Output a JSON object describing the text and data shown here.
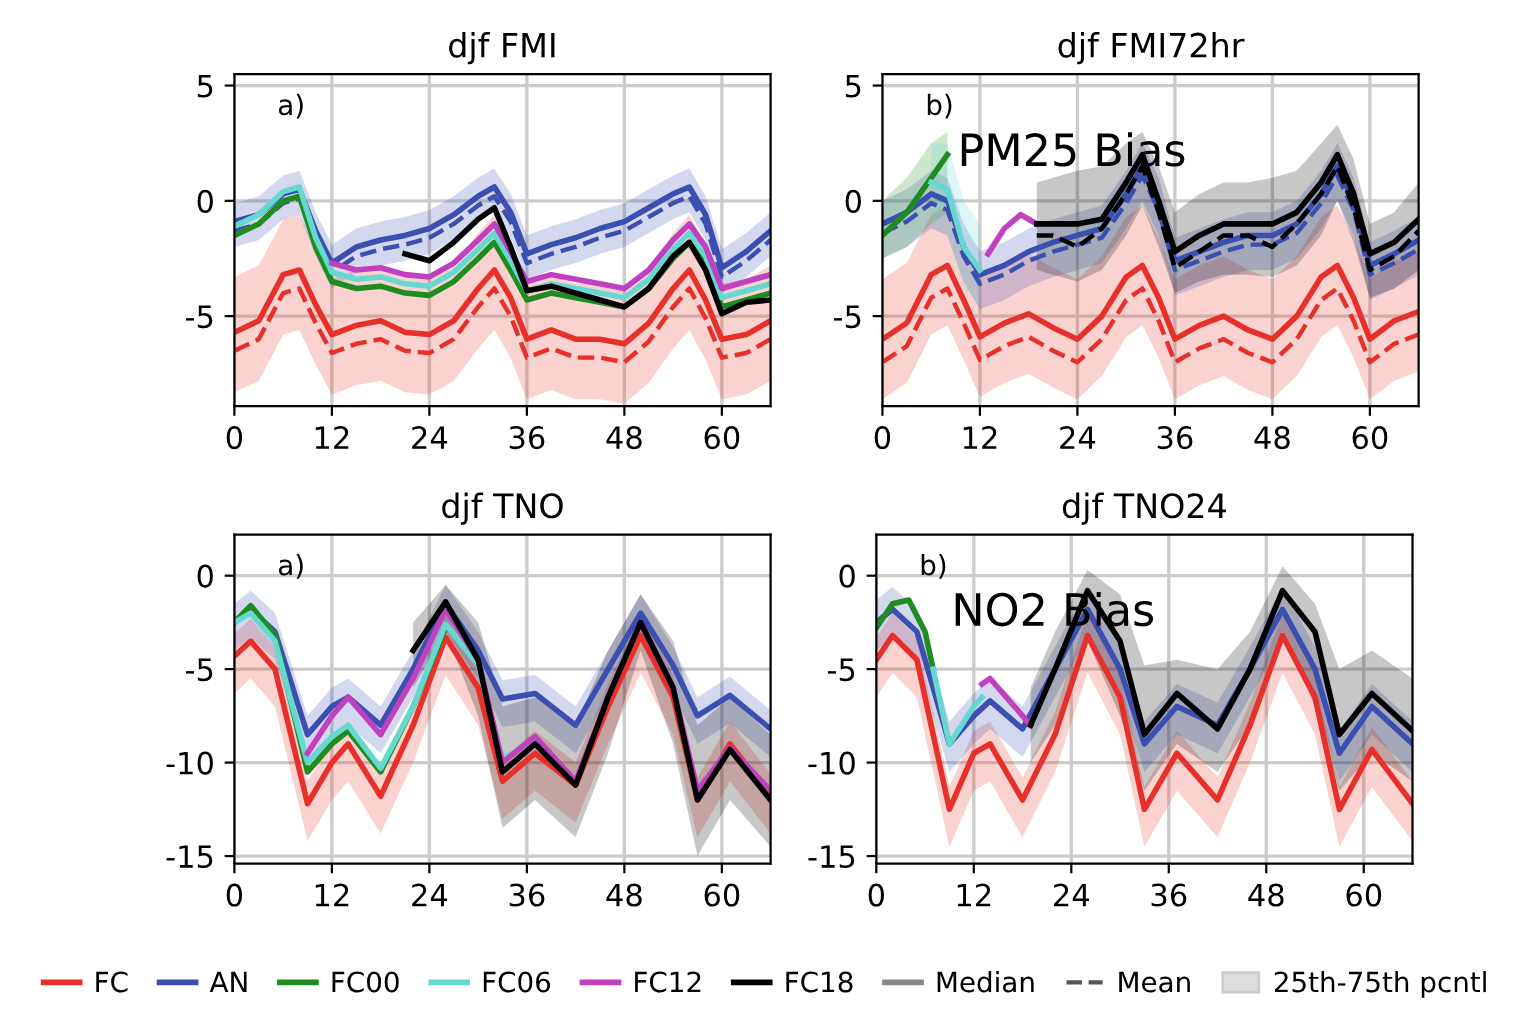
{
  "chart_data": [
    {
      "type": "line",
      "title": "djf FMI",
      "x": [
        0,
        3,
        6,
        8,
        10,
        12,
        15,
        18,
        21,
        24,
        27,
        30,
        32,
        34,
        36,
        39,
        42,
        45,
        48,
        51,
        54,
        56,
        58,
        60,
        63,
        66
      ],
      "xlim": [
        0,
        66
      ],
      "xticks": [
        0,
        12,
        24,
        36,
        48,
        60
      ],
      "ylim": [
        -8.9,
        5.5
      ],
      "yticks": [
        -5,
        0,
        5
      ],
      "grid": true,
      "legend": "bottom",
      "annotations": [
        "a)",
        "Median",
        "Mean",
        "25th-75th pcntl"
      ],
      "series": [
        {
          "name": "FC",
          "color": "#e8302a",
          "line_style": "solid",
          "values": [
            -5.7,
            -5.2,
            -3.2,
            -3.0,
            -4.5,
            -5.8,
            -5.4,
            -5.2,
            -5.7,
            -5.8,
            -5.2,
            -3.8,
            -3.0,
            -4.2,
            -6.0,
            -5.6,
            -6.0,
            -6.0,
            -6.2,
            -5.3,
            -3.8,
            -3.0,
            -4.3,
            -6.0,
            -5.8,
            -5.2
          ],
          "lower": [
            -8.3,
            -7.8,
            -5.8,
            -5.6,
            -7.1,
            -8.4,
            -8.0,
            -7.8,
            -8.3,
            -8.4,
            -7.8,
            -6.4,
            -5.6,
            -6.8,
            -8.6,
            -8.2,
            -8.6,
            -8.6,
            -8.8,
            -7.9,
            -6.4,
            -5.6,
            -6.9,
            -8.6,
            -8.4,
            -7.8
          ],
          "upper": [
            -3.3,
            -2.8,
            -0.8,
            -0.6,
            -2.1,
            -3.4,
            -3.0,
            -2.8,
            -3.3,
            -3.4,
            -2.8,
            -1.4,
            -0.6,
            -1.8,
            -3.6,
            -3.2,
            -3.6,
            -3.6,
            -3.8,
            -2.9,
            -1.4,
            -0.6,
            -1.9,
            -3.6,
            -3.4,
            -2.8
          ]
        },
        {
          "color": "#e8302a",
          "line_style": "dashed",
          "values": [
            -6.5,
            -6.0,
            -4.0,
            -3.8,
            -5.3,
            -6.6,
            -6.2,
            -6.0,
            -6.5,
            -6.6,
            -6.0,
            -4.6,
            -3.8,
            -5.0,
            -6.8,
            -6.4,
            -6.8,
            -6.8,
            -7.0,
            -6.1,
            -4.6,
            -3.8,
            -5.1,
            -6.8,
            -6.6,
            -6.0
          ]
        },
        {
          "name": "AN",
          "color": "#3a4fb0",
          "line_style": "solid",
          "values": [
            -0.9,
            -0.6,
            0.3,
            0.5,
            -1.3,
            -2.7,
            -2.0,
            -1.7,
            -1.5,
            -1.2,
            -0.6,
            0.2,
            0.6,
            -0.5,
            -2.3,
            -1.9,
            -1.6,
            -1.2,
            -0.9,
            -0.3,
            0.3,
            0.6,
            -0.6,
            -2.9,
            -2.2,
            -1.3
          ],
          "lower": [
            -2.0,
            -1.7,
            -0.8,
            -0.6,
            -2.4,
            -3.8,
            -3.1,
            -2.8,
            -2.6,
            -2.3,
            -1.7,
            -0.9,
            -0.5,
            -1.6,
            -3.4,
            -3.0,
            -2.7,
            -2.3,
            -2.0,
            -1.4,
            -0.8,
            -0.5,
            -1.7,
            -4.0,
            -3.3,
            -2.4
          ],
          "upper": [
            -0.1,
            0.2,
            1.1,
            1.3,
            -0.5,
            -1.9,
            -1.2,
            -0.9,
            -0.7,
            -0.4,
            0.2,
            1.0,
            1.4,
            0.3,
            -1.5,
            -1.1,
            -0.8,
            -0.4,
            -0.1,
            0.5,
            1.1,
            1.4,
            0.2,
            -2.1,
            -1.4,
            -0.5
          ]
        },
        {
          "color": "#3a4fb0",
          "line_style": "dashed",
          "values": [
            -1.3,
            -1.0,
            -0.1,
            0.1,
            -1.7,
            -3.1,
            -2.4,
            -2.1,
            -1.9,
            -1.6,
            -1.0,
            -0.2,
            0.2,
            -0.9,
            -2.7,
            -2.3,
            -2.0,
            -1.6,
            -1.3,
            -0.7,
            -0.1,
            0.2,
            -1.0,
            -3.3,
            -2.6,
            -1.7
          ]
        },
        {
          "name": "FC00",
          "color": "#1e8c1e",
          "line_style": "solid",
          "values": [
            -1.5,
            -1.0,
            0.0,
            0.2,
            -2.0,
            -3.5,
            -3.8,
            -3.7,
            -4.0,
            -4.1,
            -3.5,
            -2.5,
            -1.8,
            -3.0,
            -4.3,
            -4.0,
            -4.2,
            -4.4,
            -4.6,
            -3.8,
            -2.5,
            -1.8,
            -2.8,
            -4.6,
            -4.3,
            -4.0
          ]
        },
        {
          "name": "FC06",
          "color": "#66d8d0",
          "line_style": "solid",
          "values": [
            -1.1,
            -0.6,
            0.4,
            0.6,
            -1.6,
            -3.1,
            -3.4,
            -3.3,
            -3.6,
            -3.7,
            -3.1,
            -2.1,
            -1.4,
            -2.6,
            -3.9,
            -3.6,
            -3.8,
            -4.0,
            -4.2,
            -3.4,
            -2.1,
            -1.4,
            -2.4,
            -4.2,
            -3.9,
            -3.6
          ]
        },
        {
          "name": "FC12",
          "color": "#c040c0",
          "line_style": "solid",
          "x": [
            12,
            15,
            18,
            21,
            24,
            27,
            30,
            32,
            34,
            36,
            39,
            42,
            45,
            48,
            51,
            54,
            56,
            58,
            60,
            63,
            66
          ],
          "values": [
            -2.7,
            -3.0,
            -2.9,
            -3.2,
            -3.3,
            -2.7,
            -1.7,
            -1.0,
            -2.2,
            -3.5,
            -3.2,
            -3.4,
            -3.6,
            -3.8,
            -3.0,
            -1.7,
            -1.0,
            -2.0,
            -3.8,
            -3.5,
            -3.2
          ]
        },
        {
          "name": "FC18",
          "color": "#000000",
          "line_style": "solid",
          "x": [
            21,
            24,
            27,
            30,
            32,
            34,
            36,
            39,
            42,
            45,
            48,
            51,
            54,
            56,
            58,
            60,
            63,
            66
          ],
          "values": [
            -2.3,
            -2.6,
            -1.8,
            -0.8,
            -0.3,
            -2.0,
            -3.9,
            -3.7,
            -4.0,
            -4.3,
            -4.6,
            -3.8,
            -2.4,
            -1.8,
            -3.0,
            -4.9,
            -4.4,
            -4.3
          ]
        }
      ]
    },
    {
      "type": "line",
      "title": "djf FMI72hr",
      "x": [
        0,
        3,
        6,
        8,
        10,
        12,
        15,
        18,
        21,
        24,
        27,
        30,
        32,
        34,
        36,
        39,
        42,
        45,
        48,
        51,
        54,
        56,
        58,
        60,
        63,
        66
      ],
      "xlim": [
        0,
        66
      ],
      "xticks": [
        0,
        12,
        24,
        36,
        48,
        60
      ],
      "ylim": [
        -8.9,
        5.5
      ],
      "yticks": [
        -5,
        0,
        5
      ],
      "grid": true,
      "annotations": [
        "b)",
        "PM25 Bias"
      ],
      "series": [
        {
          "name": "FC",
          "color": "#e8302a",
          "line_style": "solid",
          "values": [
            -6.0,
            -5.3,
            -3.2,
            -2.8,
            -4.3,
            -5.9,
            -5.3,
            -4.9,
            -5.5,
            -6.0,
            -5.0,
            -3.3,
            -2.8,
            -4.2,
            -6.0,
            -5.4,
            -5.0,
            -5.6,
            -6.0,
            -5.0,
            -3.3,
            -2.8,
            -4.2,
            -6.0,
            -5.2,
            -4.8
          ],
          "lower": [
            -8.6,
            -7.9,
            -5.8,
            -5.4,
            -6.9,
            -8.5,
            -7.9,
            -7.5,
            -8.1,
            -8.6,
            -7.6,
            -5.9,
            -5.4,
            -6.8,
            -8.6,
            -8.0,
            -7.6,
            -8.2,
            -8.6,
            -7.6,
            -5.9,
            -5.4,
            -6.8,
            -8.6,
            -7.8,
            -7.4
          ],
          "upper": [
            -3.4,
            -2.7,
            -0.6,
            -0.2,
            -1.7,
            -3.3,
            -2.7,
            -2.3,
            -2.9,
            -3.4,
            -2.4,
            -0.7,
            -0.2,
            -1.6,
            -3.4,
            -2.8,
            -2.4,
            -3.0,
            -3.4,
            -2.4,
            -0.7,
            -0.2,
            -1.6,
            -3.4,
            -2.6,
            -2.2
          ]
        },
        {
          "color": "#e8302a",
          "line_style": "dashed",
          "values": [
            -7.0,
            -6.3,
            -4.2,
            -3.8,
            -5.3,
            -6.9,
            -6.3,
            -5.9,
            -6.5,
            -7.0,
            -6.0,
            -4.3,
            -3.8,
            -5.2,
            -7.0,
            -6.4,
            -6.0,
            -6.6,
            -7.0,
            -6.0,
            -4.3,
            -3.8,
            -5.2,
            -7.0,
            -6.2,
            -5.8
          ]
        },
        {
          "name": "AN",
          "color": "#3a4fb0",
          "line_style": "solid",
          "values": [
            -1.0,
            -0.5,
            0.3,
            0.0,
            -2.0,
            -3.2,
            -2.8,
            -2.2,
            -1.8,
            -1.5,
            -1.2,
            0.3,
            1.5,
            0.0,
            -2.6,
            -2.2,
            -1.8,
            -1.5,
            -1.5,
            -1.0,
            0.3,
            1.5,
            0.0,
            -2.8,
            -2.3,
            -1.7
          ],
          "lower": [
            -2.5,
            -2.0,
            -1.2,
            -1.5,
            -3.5,
            -4.7,
            -4.3,
            -3.7,
            -3.3,
            -3.0,
            -2.7,
            -1.2,
            0.0,
            -1.5,
            -4.1,
            -3.7,
            -3.3,
            -3.0,
            -3.0,
            -2.5,
            -1.2,
            0.0,
            -1.5,
            -4.3,
            -3.8,
            -3.2
          ],
          "upper": [
            0.0,
            0.5,
            1.3,
            1.0,
            -1.0,
            -2.2,
            -1.8,
            -1.2,
            -0.8,
            -0.5,
            -0.2,
            1.3,
            2.5,
            1.0,
            -1.6,
            -1.2,
            -0.8,
            -0.5,
            -0.5,
            0.0,
            1.3,
            2.5,
            1.0,
            -1.8,
            -1.3,
            -0.7
          ]
        },
        {
          "color": "#3a4fb0",
          "line_style": "dashed",
          "values": [
            -1.4,
            -0.9,
            -0.1,
            -0.4,
            -2.4,
            -3.6,
            -3.2,
            -2.6,
            -2.2,
            -1.9,
            -1.6,
            -0.1,
            1.1,
            -0.4,
            -3.0,
            -2.6,
            -2.2,
            -1.9,
            -1.9,
            -1.4,
            -0.1,
            1.1,
            -0.4,
            -3.2,
            -2.7,
            -2.1
          ]
        },
        {
          "name": "FC00",
          "color": "#1e8c1e",
          "line_style": "solid",
          "x": [
            0,
            3,
            6,
            8
          ],
          "values": [
            -1.5,
            -0.5,
            1.0,
            2.0
          ],
          "lower": [
            -2.5,
            -2.0,
            -1.0,
            -0.5
          ],
          "upper": [
            0.0,
            1.0,
            2.5,
            3.0
          ]
        },
        {
          "name": "FC06",
          "color": "#66d8d0",
          "line_style": "solid",
          "x": [
            6,
            8,
            10,
            12
          ],
          "values": [
            0.8,
            0.5,
            -2.0,
            -3.0
          ],
          "lower": [
            -1.0,
            -1.5,
            -3.8,
            -4.5
          ],
          "upper": [
            2.5,
            2.5,
            0.0,
            -1.0
          ]
        },
        {
          "name": "FC12",
          "color": "#c040c0",
          "line_style": "solid",
          "x": [
            13,
            15,
            17,
            18,
            19
          ],
          "values": [
            -2.3,
            -1.2,
            -0.6,
            -0.8,
            -1.0
          ]
        },
        {
          "name": "FC18",
          "color": "#000000",
          "line_style": "solid",
          "x": [
            19,
            21,
            24,
            27,
            30,
            32,
            34,
            36,
            39,
            42,
            45,
            48,
            51,
            54,
            56,
            58,
            60,
            63,
            66
          ],
          "values": [
            -1.0,
            -1.0,
            -1.0,
            -0.8,
            0.8,
            2.0,
            0.0,
            -2.2,
            -1.5,
            -1.0,
            -1.0,
            -1.0,
            -0.5,
            0.8,
            2.0,
            0.3,
            -2.3,
            -1.8,
            -0.8
          ],
          "lower": [
            -3.0,
            -3.2,
            -3.5,
            -3.0,
            -1.5,
            -0.2,
            -2.0,
            -4.0,
            -3.5,
            -3.2,
            -3.2,
            -3.3,
            -2.8,
            -1.5,
            0.0,
            -1.8,
            -4.2,
            -3.8,
            -3.0
          ],
          "upper": [
            0.8,
            1.0,
            1.3,
            1.5,
            2.5,
            3.0,
            1.5,
            -0.5,
            0.3,
            0.8,
            0.8,
            1.0,
            1.3,
            2.5,
            3.3,
            1.8,
            -1.0,
            -0.5,
            0.8
          ]
        },
        {
          "color": "#000000",
          "line_style": "dashed",
          "x": [
            19,
            21,
            24,
            27,
            30,
            32,
            34,
            36,
            39,
            42,
            45,
            48,
            51,
            54,
            56,
            58,
            60,
            63,
            66
          ],
          "values": [
            -1.5,
            -1.5,
            -2.0,
            -1.2,
            0.3,
            1.5,
            -0.5,
            -2.9,
            -2.2,
            -1.5,
            -1.5,
            -2.0,
            -1.0,
            0.3,
            1.5,
            -0.3,
            -3.0,
            -2.4,
            -1.3
          ]
        }
      ]
    },
    {
      "type": "line",
      "title": "djf TNO",
      "x": [
        0,
        2,
        5,
        9,
        12,
        14,
        18,
        22,
        26,
        30,
        33,
        37,
        42,
        46,
        50,
        54,
        57,
        61,
        66
      ],
      "xlim": [
        0,
        66
      ],
      "xticks": [
        0,
        12,
        24,
        36,
        48,
        60
      ],
      "ylim": [
        -15.4,
        2.2
      ],
      "yticks": [
        -15,
        -10,
        -5,
        0
      ],
      "grid": true,
      "annotations": [
        "a)"
      ],
      "series": [
        {
          "name": "FC",
          "color": "#e8302a",
          "line_style": "solid",
          "values": [
            -4.3,
            -3.5,
            -5.0,
            -12.2,
            -10.0,
            -9.0,
            -11.8,
            -8.0,
            -3.3,
            -6.0,
            -11.0,
            -9.5,
            -11.2,
            -7.0,
            -3.2,
            -6.5,
            -12.0,
            -9.0,
            -11.8
          ],
          "lower": [
            -6.3,
            -5.5,
            -7.0,
            -14.2,
            -12.0,
            -11.0,
            -13.8,
            -10.0,
            -5.3,
            -8.0,
            -13.0,
            -11.5,
            -13.2,
            -9.0,
            -5.2,
            -8.5,
            -14.0,
            -11.0,
            -13.8
          ],
          "upper": [
            -3.1,
            -2.3,
            -3.8,
            -11.0,
            -8.8,
            -7.8,
            -10.6,
            -6.8,
            -2.1,
            -4.8,
            -9.8,
            -8.3,
            -10.0,
            -5.8,
            -2.0,
            -5.3,
            -10.8,
            -7.8,
            -10.6
          ]
        },
        {
          "name": "AN",
          "color": "#3a4fb0",
          "line_style": "solid",
          "values": [
            -2.5,
            -1.8,
            -3.0,
            -8.5,
            -7.0,
            -6.5,
            -8.0,
            -5.0,
            -1.5,
            -4.0,
            -6.6,
            -6.3,
            -8.0,
            -5.0,
            -2.0,
            -4.8,
            -7.5,
            -6.4,
            -8.2
          ],
          "lower": [
            -4.0,
            -3.3,
            -4.5,
            -10.0,
            -8.5,
            -8.0,
            -9.5,
            -6.5,
            -3.0,
            -5.5,
            -8.1,
            -7.8,
            -9.5,
            -6.5,
            -3.5,
            -6.3,
            -9.0,
            -7.9,
            -9.7
          ],
          "upper": [
            -1.5,
            -0.8,
            -2.0,
            -7.5,
            -6.0,
            -5.5,
            -7.0,
            -4.0,
            -0.5,
            -3.0,
            -5.6,
            -5.3,
            -7.0,
            -4.0,
            -1.0,
            -3.8,
            -6.5,
            -5.4,
            -7.2
          ]
        },
        {
          "name": "FC00",
          "color": "#1e8c1e",
          "line_style": "solid",
          "x": [
            0,
            2,
            5,
            9,
            12,
            14,
            18,
            22,
            26
          ],
          "values": [
            -2.5,
            -1.6,
            -3.2,
            -10.5,
            -9.0,
            -8.3,
            -10.5,
            -7.0,
            -2.8
          ]
        },
        {
          "name": "FC06",
          "color": "#66d8d0",
          "line_style": "solid",
          "x": [
            0,
            2,
            5,
            9,
            12,
            14,
            18,
            22,
            26,
            30,
            33,
            37
          ],
          "values": [
            -2.5,
            -2.0,
            -3.5,
            -10.0,
            -8.6,
            -8.0,
            -10.3,
            -7.0,
            -2.6,
            -4.8,
            -9.8,
            -8.8
          ]
        },
        {
          "name": "FC12",
          "color": "#c040c0",
          "line_style": "solid",
          "x": [
            9,
            12,
            14,
            18,
            22,
            26,
            30,
            33,
            37,
            42,
            46,
            50,
            54,
            57,
            61,
            66
          ],
          "values": [
            -9.5,
            -7.5,
            -6.5,
            -8.5,
            -5.5,
            -1.8,
            -4.5,
            -10.0,
            -8.6,
            -11.0,
            -6.5,
            -2.5,
            -6.0,
            -11.5,
            -9.2,
            -11.5
          ]
        },
        {
          "name": "FC18",
          "color": "#000000",
          "line_style": "solid",
          "x": [
            22,
            26,
            30,
            33,
            37,
            42,
            46,
            50,
            54,
            57,
            61,
            66
          ],
          "values": [
            -4.0,
            -1.4,
            -4.5,
            -10.5,
            -9.0,
            -11.2,
            -6.5,
            -2.5,
            -6.0,
            -12.0,
            -9.3,
            -12.0
          ],
          "lower": [
            -6.0,
            -3.0,
            -7.5,
            -13.5,
            -12.0,
            -14.0,
            -9.5,
            -4.0,
            -9.0,
            -15.0,
            -12.0,
            -14.5
          ],
          "upper": [
            -2.5,
            -0.5,
            -2.5,
            -7.0,
            -6.5,
            -8.0,
            -4.0,
            -1.0,
            -3.5,
            -8.0,
            -6.5,
            -8.5
          ]
        }
      ]
    },
    {
      "type": "line",
      "title": "djf TNO24",
      "x": [
        0,
        2,
        5,
        9,
        12,
        14,
        18,
        22,
        26,
        30,
        33,
        37,
        42,
        46,
        50,
        54,
        57,
        61,
        66
      ],
      "xlim": [
        0,
        66
      ],
      "xticks": [
        0,
        12,
        24,
        36,
        48,
        60
      ],
      "ylim": [
        -15.4,
        2.2
      ],
      "yticks": [
        -15,
        -10,
        -5,
        0
      ],
      "grid": true,
      "annotations": [
        "b)",
        "NO2 Bias"
      ],
      "series": [
        {
          "name": "FC",
          "color": "#e8302a",
          "line_style": "solid",
          "values": [
            -4.5,
            -3.2,
            -4.5,
            -12.5,
            -9.5,
            -9.0,
            -12.0,
            -8.5,
            -3.2,
            -6.5,
            -12.5,
            -9.5,
            -12.0,
            -8.0,
            -3.2,
            -6.5,
            -12.5,
            -9.3,
            -12.2
          ],
          "lower": [
            -6.5,
            -5.2,
            -6.5,
            -14.5,
            -11.5,
            -11.0,
            -14.0,
            -10.5,
            -5.2,
            -8.5,
            -14.5,
            -11.5,
            -14.0,
            -10.0,
            -5.2,
            -8.5,
            -14.5,
            -11.3,
            -14.2
          ],
          "upper": [
            -3.3,
            -2.0,
            -3.3,
            -11.3,
            -8.3,
            -7.8,
            -10.8,
            -7.3,
            -2.0,
            -5.3,
            -11.3,
            -8.3,
            -10.8,
            -6.8,
            -2.0,
            -5.3,
            -11.3,
            -8.1,
            -11.0
          ]
        },
        {
          "name": "AN",
          "color": "#3a4fb0",
          "line_style": "solid",
          "values": [
            -2.5,
            -1.8,
            -3.0,
            -9.0,
            -7.5,
            -6.7,
            -8.2,
            -5.0,
            -1.8,
            -5.0,
            -9.0,
            -7.0,
            -8.0,
            -5.0,
            -1.8,
            -5.0,
            -9.5,
            -7.0,
            -9.0
          ],
          "lower": [
            -4.0,
            -3.3,
            -4.5,
            -10.5,
            -9.0,
            -8.2,
            -9.7,
            -6.5,
            -3.3,
            -6.5,
            -10.5,
            -8.5,
            -9.5,
            -6.5,
            -3.3,
            -6.5,
            -11.0,
            -8.5,
            -10.5
          ],
          "upper": [
            -1.3,
            -0.6,
            -1.8,
            -7.8,
            -6.3,
            -5.5,
            -7.0,
            -3.8,
            -0.6,
            -3.8,
            -7.8,
            -5.8,
            -6.8,
            -3.8,
            -0.6,
            -3.8,
            -8.3,
            -5.8,
            -7.8
          ]
        },
        {
          "name": "FC00",
          "color": "#1e8c1e",
          "line_style": "solid",
          "x": [
            0,
            2,
            4,
            6,
            7
          ],
          "values": [
            -2.8,
            -1.5,
            -1.3,
            -3.0,
            -5.0
          ]
        },
        {
          "name": "FC06",
          "color": "#66d8d0",
          "line_style": "solid",
          "x": [
            7,
            9,
            12,
            13
          ],
          "values": [
            -5.0,
            -9.0,
            -7.0,
            -6.5
          ]
        },
        {
          "name": "FC12",
          "color": "#c040c0",
          "line_style": "solid",
          "x": [
            13,
            14,
            16,
            18,
            19
          ],
          "values": [
            -5.8,
            -5.5,
            -6.5,
            -7.5,
            -8.0
          ]
        },
        {
          "name": "FC18",
          "color": "#000000",
          "line_style": "solid",
          "x": [
            19,
            22,
            26,
            30,
            33,
            37,
            42,
            46,
            50,
            54,
            57,
            61,
            66
          ],
          "values": [
            -8.0,
            -5.0,
            -0.8,
            -3.5,
            -8.5,
            -6.3,
            -8.2,
            -5.0,
            -0.8,
            -3.0,
            -8.5,
            -6.3,
            -8.3
          ],
          "lower": [
            -10.0,
            -8.0,
            -3.5,
            -7.5,
            -11.5,
            -9.0,
            -10.5,
            -8.0,
            -3.0,
            -7.0,
            -11.5,
            -9.5,
            -11.0
          ],
          "upper": [
            -6.0,
            -3.0,
            0.3,
            -1.0,
            -4.8,
            -4.5,
            -5.0,
            -3.0,
            0.5,
            -1.5,
            -5.0,
            -4.0,
            -5.5
          ]
        }
      ]
    }
  ]
}
